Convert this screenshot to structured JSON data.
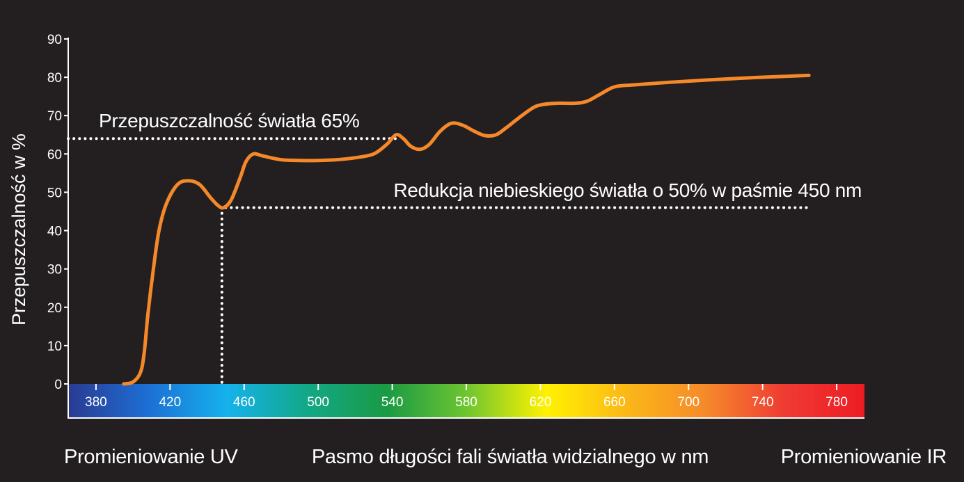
{
  "chart_data": {
    "type": "line",
    "ylabel": "Przepuszczalność w %",
    "xlabel": "Pasmo długości fali światła widzialnego w nm",
    "xlim": [
      365,
      795
    ],
    "ylim": [
      0,
      90
    ],
    "x_ticks": [
      380,
      420,
      460,
      500,
      540,
      580,
      620,
      660,
      700,
      740,
      780
    ],
    "y_ticks": [
      0,
      10,
      20,
      30,
      40,
      50,
      60,
      70,
      80,
      90
    ],
    "series": [
      {
        "color": "#f5892a",
        "points": [
          [
            395,
            0
          ],
          [
            400,
            0.5
          ],
          [
            404,
            3
          ],
          [
            406,
            8
          ],
          [
            408,
            18
          ],
          [
            411,
            30
          ],
          [
            414,
            40
          ],
          [
            418,
            47
          ],
          [
            424,
            52
          ],
          [
            430,
            53
          ],
          [
            436,
            52
          ],
          [
            442,
            48.5
          ],
          [
            446,
            46.5
          ],
          [
            449,
            46
          ],
          [
            453,
            48
          ],
          [
            458,
            54
          ],
          [
            461,
            58
          ],
          [
            465,
            60
          ],
          [
            470,
            59.5
          ],
          [
            480,
            58.5
          ],
          [
            490,
            58.3
          ],
          [
            500,
            58.3
          ],
          [
            510,
            58.5
          ],
          [
            520,
            59
          ],
          [
            530,
            60
          ],
          [
            537,
            62.5
          ],
          [
            542,
            65
          ],
          [
            546,
            64
          ],
          [
            550,
            62
          ],
          [
            555,
            61.2
          ],
          [
            560,
            62.5
          ],
          [
            566,
            66
          ],
          [
            572,
            68
          ],
          [
            578,
            67.5
          ],
          [
            584,
            66
          ],
          [
            590,
            64.8
          ],
          [
            596,
            65
          ],
          [
            602,
            67
          ],
          [
            610,
            70
          ],
          [
            618,
            72.5
          ],
          [
            628,
            73.2
          ],
          [
            638,
            73.2
          ],
          [
            645,
            73.7
          ],
          [
            652,
            75.5
          ],
          [
            660,
            77.5
          ],
          [
            670,
            78
          ],
          [
            690,
            78.7
          ],
          [
            710,
            79.3
          ],
          [
            730,
            79.8
          ],
          [
            750,
            80.2
          ],
          [
            765,
            80.5
          ]
        ]
      }
    ],
    "spectrum_colors": [
      "#2b3a92",
      "#1c6fd4",
      "#15b2ec",
      "#12a887",
      "#1a9a44",
      "#6ec530",
      "#fff200",
      "#fbb817",
      "#f58a2a",
      "#ef3a33",
      "#ed1c24"
    ],
    "reference_lines": [
      {
        "y": 64,
        "x_from": 365,
        "x_to": 543,
        "label": "Przepuszczalność światła 65%"
      },
      {
        "y": 46,
        "x_from": 450,
        "x_to": 765,
        "label": "Redukcja niebieskiego światła o 50% w paśmie 450 nm"
      }
    ],
    "reference_vline": {
      "x": 448,
      "y_from": 0,
      "y_to": 46
    },
    "bottom_labels": {
      "left": "Promieniowanie UV",
      "center": "Pasmo długości fali światła widzialnego w nm",
      "right": "Promieniowanie IR"
    },
    "grid": false,
    "legend": "none"
  }
}
